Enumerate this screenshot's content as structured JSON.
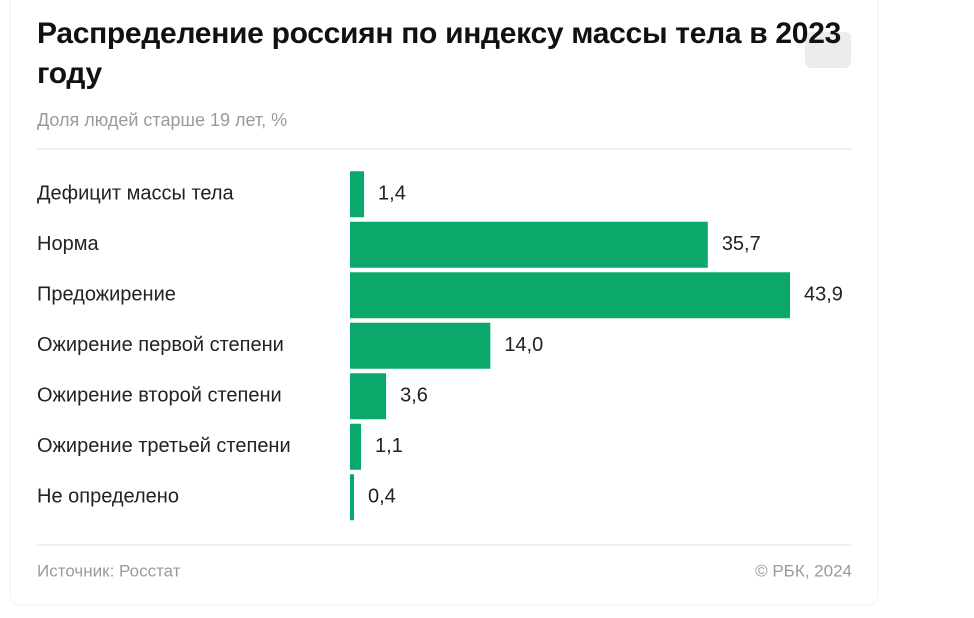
{
  "chart_data": {
    "type": "bar",
    "orientation": "horizontal",
    "title": "Распределение россиян по индексу массы тела в 2023 году",
    "subtitle": "Доля людей старше 19 лет, %",
    "categories": [
      "Дефицит массы тела",
      "Норма",
      "Предожирение",
      "Ожирение первой степени",
      "Ожирение второй степени",
      "Ожирение третьей степени",
      "Не определено"
    ],
    "values": [
      1.4,
      35.7,
      43.9,
      14.0,
      3.6,
      1.1,
      0.4
    ],
    "value_labels": [
      "1,4",
      "35,7",
      "43,9",
      "14,0",
      "3,6",
      "1,1",
      "0,4"
    ],
    "color": "#0aa86a",
    "source": "Источник: Росстат",
    "credit": "© РБК, 2024"
  }
}
